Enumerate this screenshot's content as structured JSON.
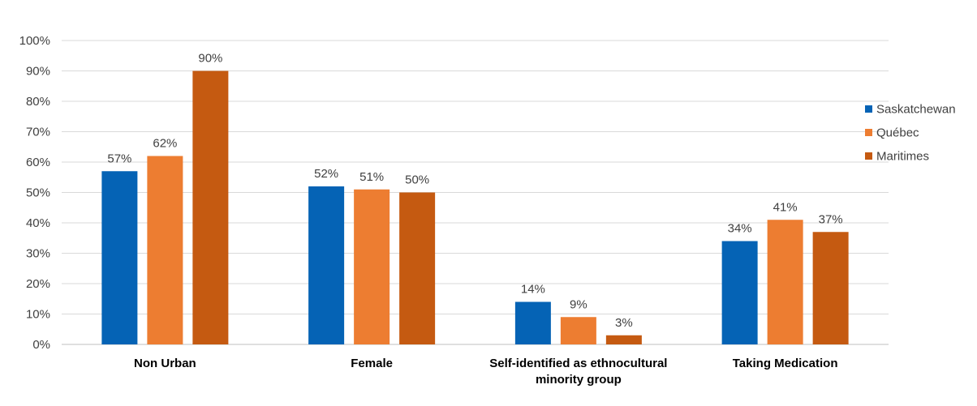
{
  "chart_data": {
    "type": "bar",
    "categories": [
      [
        "Non Urban"
      ],
      [
        "Female"
      ],
      [
        "Self-identified as ethnocultural",
        "minority group"
      ],
      [
        "Taking Medication"
      ]
    ],
    "series": [
      {
        "name": "Saskatchewan",
        "color": "#0563b5",
        "values": [
          57,
          52,
          14,
          34
        ]
      },
      {
        "name": "Québec",
        "color": "#ed7d31",
        "values": [
          62,
          51,
          9,
          41
        ]
      },
      {
        "name": "Maritimes",
        "color": "#c55a11",
        "values": [
          90,
          50,
          3,
          37
        ]
      }
    ],
    "ylim": [
      0,
      100
    ],
    "yticks": [
      0,
      10,
      20,
      30,
      40,
      50,
      60,
      70,
      80,
      90,
      100
    ],
    "ytick_suffix": "%",
    "data_label_suffix": "%",
    "grid": true,
    "legend_position": "right"
  }
}
